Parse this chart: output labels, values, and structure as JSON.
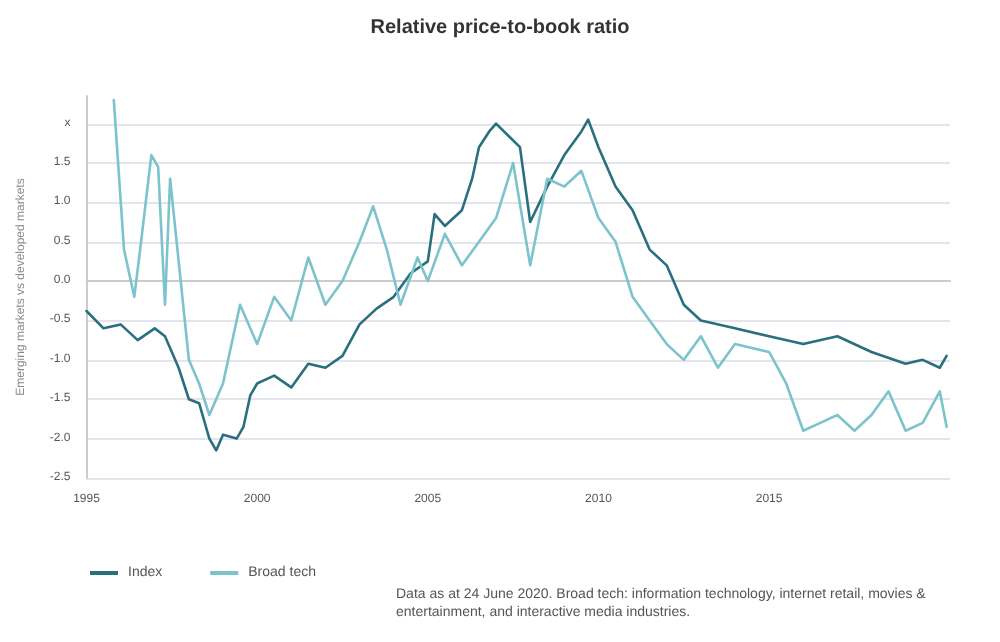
{
  "chart_data": {
    "type": "line",
    "title": "Relative price-to-book ratio",
    "ylabel": "Emerging markets vs developed markets",
    "annotations": [
      "Data as at 24 June 2020. Broad tech: information technology, internet retail, movies & entertainment, and interactive media industries."
    ],
    "xlim": [
      1995,
      2020.3
    ],
    "xticks": [
      1995,
      2000,
      2005,
      2010,
      2015
    ],
    "ylim": [
      -2.5,
      2.35
    ],
    "yticks": [
      {
        "value": -2.5,
        "label": "-2.5"
      },
      {
        "value": -2,
        "label": "-2.0"
      },
      {
        "value": -1.5,
        "label": "-1.5"
      },
      {
        "value": -1,
        "label": "-1.0"
      },
      {
        "value": -0.5,
        "label": "-0.5"
      },
      {
        "value": 0,
        "label": "0.0"
      },
      {
        "value": 0.5,
        "label": "0.5"
      },
      {
        "value": 1,
        "label": "1.0"
      },
      {
        "value": 1.5,
        "label": "1.5"
      },
      {
        "value": 2,
        "label": "x"
      }
    ],
    "grid": "y",
    "legend": "bottom left",
    "marker": "none",
    "line_style": "solid",
    "series": [
      {
        "name": "Index",
        "color": "#2a6f7f",
        "x": [
          1995,
          1995.5,
          1996,
          1996.5,
          1997,
          1997.3,
          1997.7,
          1998,
          1998.3,
          1998.6,
          1998.8,
          1999,
          1999.4,
          1999.6,
          1999.8,
          2000,
          2000.5,
          2001,
          2001.5,
          2002,
          2002.5,
          2003,
          2003.5,
          2004,
          2004.5,
          2005,
          2005.2,
          2005.5,
          2006,
          2006.3,
          2006.5,
          2006.8,
          2007,
          2007.7,
          2008,
          2008.5,
          2009,
          2009.5,
          2009.7,
          2010,
          2010.5,
          2011,
          2011.5,
          2012,
          2012.5,
          2013,
          2014,
          2015,
          2016,
          2017,
          2018,
          2019,
          2019.5,
          2020,
          2020.2
        ],
        "values": [
          -0.38,
          -0.6,
          -0.55,
          -0.75,
          -0.6,
          -0.7,
          -1.1,
          -1.5,
          -1.55,
          -2.0,
          -2.15,
          -1.95,
          -2.0,
          -1.85,
          -1.45,
          -1.3,
          -1.2,
          -1.35,
          -1.05,
          -1.1,
          -0.95,
          -0.55,
          -0.35,
          -0.2,
          0.1,
          0.25,
          0.85,
          0.7,
          0.9,
          1.3,
          1.7,
          1.9,
          2.0,
          1.7,
          0.75,
          1.2,
          1.6,
          1.9,
          2.05,
          1.7,
          1.2,
          0.9,
          0.4,
          0.2,
          -0.3,
          -0.5,
          -0.6,
          -0.7,
          -0.8,
          -0.7,
          -0.9,
          -1.05,
          -1.0,
          -1.1,
          -0.95
        ]
      },
      {
        "name": "Broad tech",
        "color": "#7cc3cc",
        "x": [
          1995.8,
          1996.1,
          1996.4,
          1996.6,
          1996.9,
          1997.1,
          1997.3,
          1997.45,
          1998,
          1998.3,
          1998.6,
          1999,
          1999.5,
          2000,
          2000.5,
          2001,
          2001.5,
          2002,
          2002.5,
          2003,
          2003.4,
          2003.8,
          2004.2,
          2004.7,
          2005,
          2005.5,
          2006,
          2006.5,
          2007,
          2007.5,
          2008,
          2008.5,
          2009,
          2009.5,
          2010,
          2010.5,
          2011,
          2011.5,
          2012,
          2012.5,
          2013,
          2013.5,
          2014,
          2015,
          2015.5,
          2016,
          2016.5,
          2017,
          2017.5,
          2018,
          2018.5,
          2019,
          2019.5,
          2020,
          2020.2
        ],
        "values": [
          2.3,
          0.4,
          -0.2,
          0.5,
          1.6,
          1.45,
          -0.3,
          1.3,
          -1.0,
          -1.3,
          -1.7,
          -1.3,
          -0.3,
          -0.8,
          -0.2,
          -0.5,
          0.3,
          -0.3,
          0.0,
          0.5,
          0.95,
          0.4,
          -0.3,
          0.3,
          0.0,
          0.6,
          0.2,
          0.5,
          0.8,
          1.5,
          0.2,
          1.3,
          1.2,
          1.4,
          0.8,
          0.5,
          -0.2,
          -0.5,
          -0.8,
          -1.0,
          -0.7,
          -1.1,
          -0.8,
          -0.9,
          -1.3,
          -1.9,
          -1.8,
          -1.7,
          -1.9,
          -1.7,
          -1.4,
          -1.9,
          -1.8,
          -1.4,
          -1.85
        ]
      }
    ]
  }
}
